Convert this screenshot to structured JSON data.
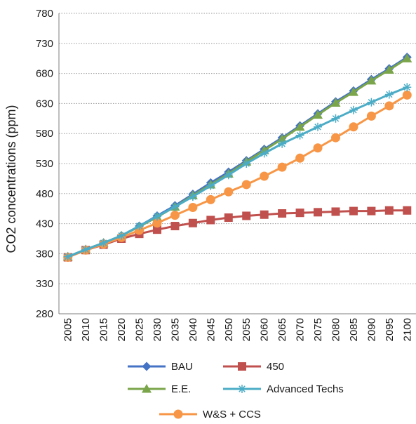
{
  "chart_data": {
    "type": "line",
    "title": "",
    "xlabel": "",
    "ylabel": "CO2 concentrations (ppm)",
    "ylim": [
      280,
      780
    ],
    "yticks": [
      280,
      330,
      380,
      430,
      480,
      530,
      580,
      630,
      680,
      730,
      780
    ],
    "grid": "horizontal-dotted",
    "legend_position": "bottom",
    "x": [
      "2005",
      "2010",
      "2015",
      "2020",
      "2025",
      "2030",
      "2035",
      "2040",
      "2045",
      "2050",
      "2055",
      "2060",
      "2065",
      "2070",
      "2075",
      "2080",
      "2085",
      "2090",
      "2095",
      "2100"
    ],
    "series": [
      {
        "name": "BAU",
        "color": "#4472C4",
        "marker": "diamond",
        "values": [
          375,
          387,
          398,
          410,
          426,
          443,
          460,
          479,
          498,
          516,
          535,
          554,
          573,
          593,
          613,
          633,
          651,
          670,
          688,
          707
        ]
      },
      {
        "name": "450",
        "color": "#C0504D",
        "marker": "square",
        "values": [
          374,
          386,
          395,
          405,
          413,
          420,
          426,
          431,
          436,
          440,
          443,
          445,
          447,
          448,
          449,
          450,
          451,
          451,
          452,
          452
        ]
      },
      {
        "name": "E.E.",
        "color": "#7AA54A",
        "marker": "triangle",
        "values": [
          375,
          387,
          398,
          410,
          425,
          441,
          458,
          477,
          495,
          513,
          533,
          552,
          571,
          591,
          611,
          631,
          649,
          668,
          686,
          705
        ]
      },
      {
        "name": "Advanced Techs",
        "color": "#4BACC6",
        "marker": "asterisk",
        "values": [
          375,
          387,
          398,
          410,
          426,
          442,
          458,
          475,
          493,
          511,
          530,
          547,
          563,
          577,
          591,
          605,
          619,
          632,
          645,
          657
        ]
      },
      {
        "name": "W&S + CCS",
        "color": "#F79646",
        "marker": "circle",
        "values": [
          374,
          386,
          396,
          407,
          419,
          431,
          444,
          457,
          470,
          483,
          495,
          509,
          524,
          539,
          556,
          573,
          591,
          609,
          626,
          644
        ]
      }
    ]
  }
}
